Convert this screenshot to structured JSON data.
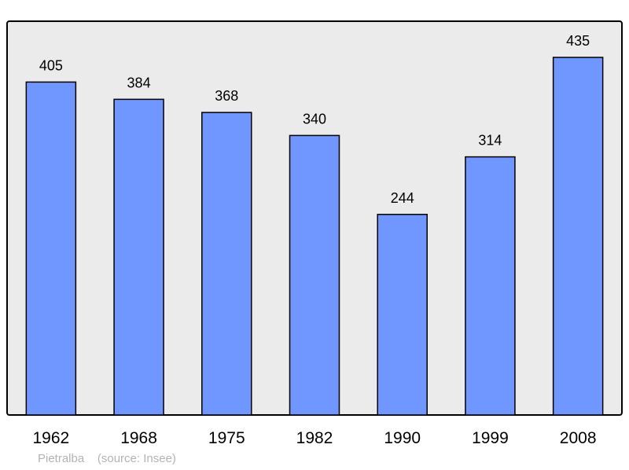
{
  "chart_data": {
    "type": "bar",
    "categories": [
      "1962",
      "1968",
      "1975",
      "1982",
      "1990",
      "1999",
      "2008"
    ],
    "values": [
      405,
      384,
      368,
      340,
      244,
      314,
      435
    ],
    "title": "",
    "xlabel": "",
    "ylabel": "",
    "ylim": [
      0,
      479
    ],
    "grid": false,
    "data_labels": true,
    "colors": {
      "bar": "#7096ff",
      "plot_bg": "#ebebeb",
      "stroke": "#000000"
    }
  },
  "footer": {
    "place": "Pietralba",
    "source": "(source: Insee)"
  }
}
